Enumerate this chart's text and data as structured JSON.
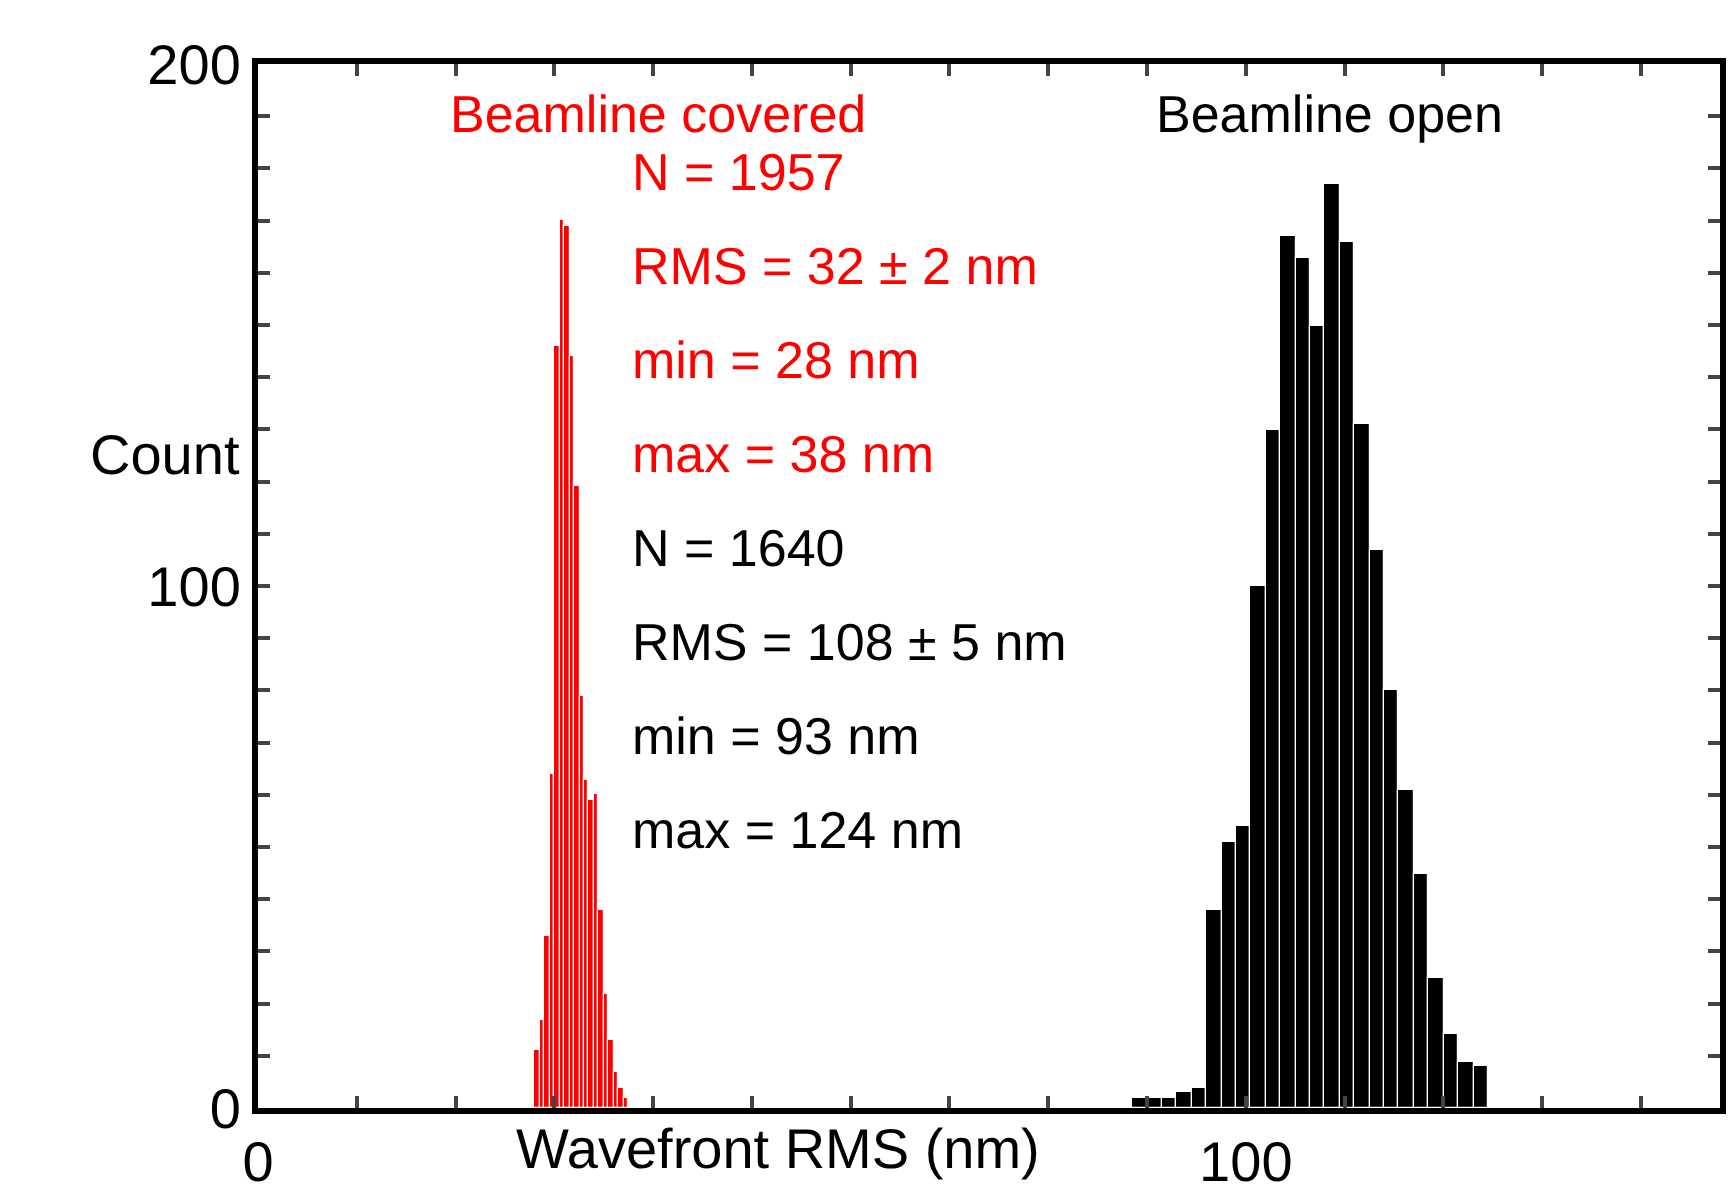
{
  "chart_data": {
    "type": "bar",
    "xlabel": "Wavefront RMS (nm)",
    "ylabel": "Count",
    "xlim": [
      0,
      148
    ],
    "xticks": [
      0,
      {
        "value": 10,
        "label": null
      },
      {
        "value": 20,
        "label": null
      },
      {
        "value": 30,
        "label": null
      },
      {
        "value": 40,
        "label": null
      },
      {
        "value": 50,
        "label": null
      },
      {
        "value": 60,
        "label": null
      },
      {
        "value": 70,
        "label": null
      },
      {
        "value": 80,
        "label": null
      },
      {
        "value": 90,
        "label": null
      },
      100,
      {
        "value": 110,
        "label": null
      },
      {
        "value": 120,
        "label": null
      },
      {
        "value": 130,
        "label": null
      },
      {
        "value": 140,
        "label": null
      }
    ],
    "ylim": [
      0,
      200
    ],
    "yticks": [
      0,
      {
        "value": 10,
        "label": null
      },
      {
        "value": 20,
        "label": null
      },
      {
        "value": 30,
        "label": null
      },
      {
        "value": 40,
        "label": null
      },
      {
        "value": 50,
        "label": null
      },
      {
        "value": 60,
        "label": null
      },
      {
        "value": 70,
        "label": null
      },
      {
        "value": 80,
        "label": null
      },
      {
        "value": 90,
        "label": null
      },
      100,
      {
        "value": 110,
        "label": null
      },
      {
        "value": 120,
        "label": null
      },
      {
        "value": 130,
        "label": null
      },
      {
        "value": 140,
        "label": null
      },
      {
        "value": 150,
        "label": null
      },
      {
        "value": 160,
        "label": null
      },
      {
        "value": 170,
        "label": null
      },
      {
        "value": 180,
        "label": null
      },
      {
        "value": 190,
        "label": null
      },
      200
    ],
    "legend": false,
    "series": [
      {
        "name": "Beamline covered",
        "color": "#ff0000",
        "x": [
          28.25,
          28.75,
          29.25,
          29.75,
          30.25,
          30.75,
          31.25,
          31.75,
          32.25,
          32.75,
          33.25,
          33.75,
          34.25,
          34.75,
          35.25,
          35.75,
          36.25,
          36.75,
          37.25
        ],
        "values": [
          11,
          17,
          33,
          64,
          146,
          170,
          169,
          144,
          119,
          79,
          63,
          59,
          60,
          38,
          22,
          13,
          7,
          4,
          2
        ]
      },
      {
        "name": "Beamline open",
        "color": "#000000",
        "x": [
          89.25,
          90.75,
          92.25,
          93.75,
          95.25,
          96.75,
          98.25,
          99.75,
          101.25,
          102.75,
          104.25,
          105.75,
          107.25,
          108.75,
          110.25,
          111.75,
          113.25,
          114.75,
          116.25,
          117.75,
          119.25,
          120.75,
          122.25,
          123.75
        ],
        "values": [
          2,
          2,
          2,
          3,
          4,
          38,
          51,
          54,
          100,
          130,
          167,
          163,
          150,
          177,
          166,
          131,
          107,
          80,
          61,
          45,
          25,
          14,
          9,
          8
        ]
      }
    ],
    "annotations": [
      "N = 1957\nRMS = 32 ± 2 nm\nmin = 28 nm\nmax = 38 nm",
      "N = 1640\nRMS = 108 ± 5 nm\nmin = 93 nm\nmax = 124 nm"
    ]
  }
}
